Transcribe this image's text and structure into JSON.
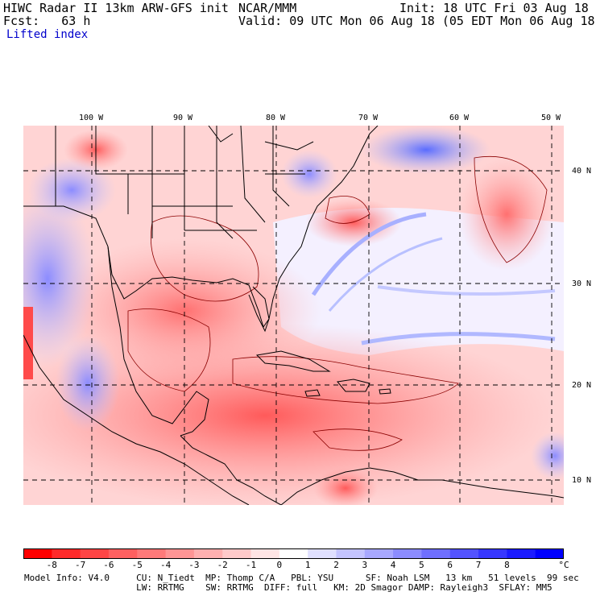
{
  "header": {
    "line1_left": "HIWC Radar II 13km ARW-GFS init",
    "line1_mid": "NCAR/MMM",
    "line1_right": "Init: 18 UTC Fri 03 Aug 18",
    "line2_left": "Fcst:   63 h",
    "line2_right": "Valid: 09 UTC Mon 06 Aug 18 (05 EDT Mon 06 Aug 18)",
    "field": "Lifted index"
  },
  "map": {
    "lon_labels": [
      "100 W",
      "90 W",
      "80 W",
      "70 W",
      "60 W",
      "50 W"
    ],
    "lat_labels": [
      "40 N",
      "30 N",
      "20 N",
      "10 N"
    ],
    "colors": {
      "border": "#000000",
      "contour": "#8b0000",
      "grid": "#000000"
    }
  },
  "colorbar": {
    "labels": [
      "-8",
      "-7",
      "-6",
      "-5",
      "-4",
      "-3",
      "-2",
      "-1",
      "0",
      "1",
      "2",
      "3",
      "4",
      "5",
      "6",
      "7",
      "8"
    ],
    "unit": "°C",
    "colors": [
      "#ff0000",
      "#ff2a2a",
      "#ff4545",
      "#ff6060",
      "#ff7a7a",
      "#ff9595",
      "#ffb0b0",
      "#ffcaca",
      "#ffe5e5",
      "#ffffff",
      "#e0e0ff",
      "#c4c4ff",
      "#a8a8ff",
      "#8c8cff",
      "#6f6fff",
      "#5353ff",
      "#3737ff",
      "#1b1bff",
      "#0000ff"
    ]
  },
  "footer": {
    "line1": "Model Info: V4.0     CU: N_Tiedt  MP: Thomp C/A   PBL: YSU      SF: Noah LSM   13 km   51 levels  99 sec",
    "line2": "                     LW: RRTMG    SW: RRTMG  DIFF: full   KM: 2D Smagor DAMP: Rayleigh3  SFLAY: MM5"
  }
}
